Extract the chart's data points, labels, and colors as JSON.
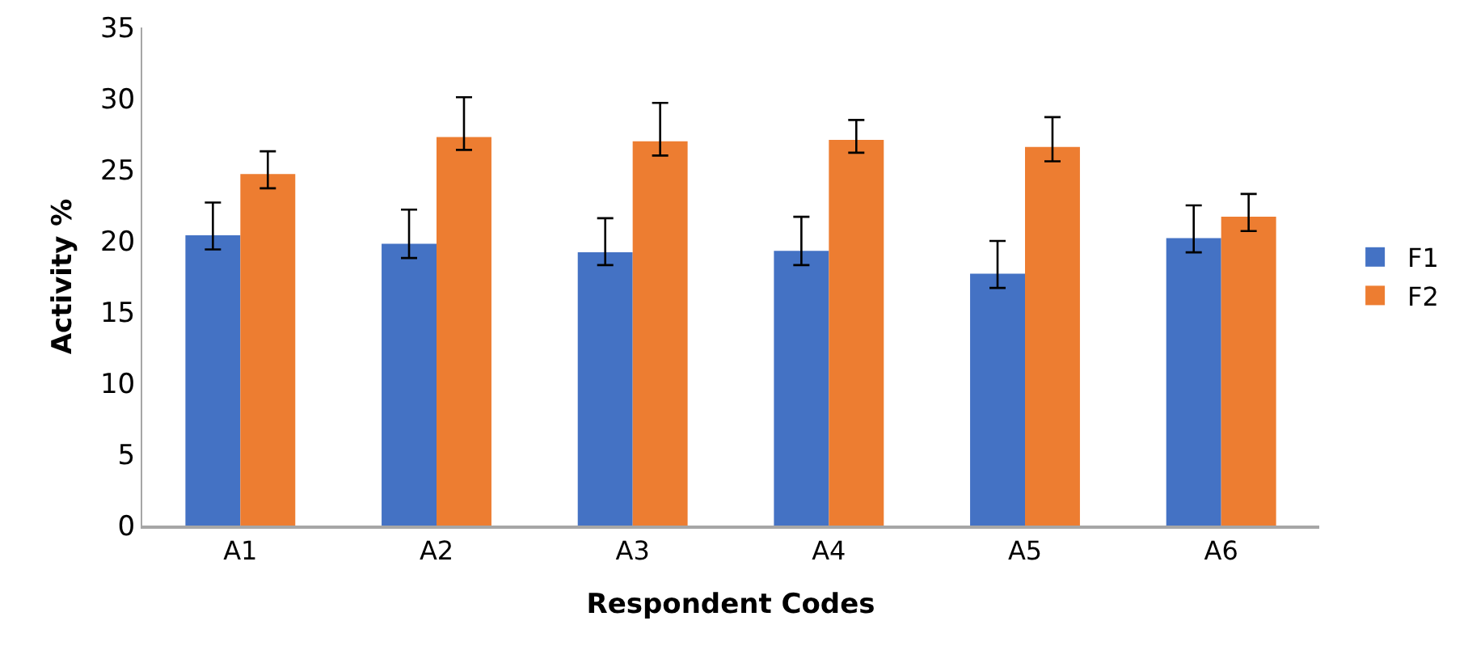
{
  "chart_data": {
    "type": "bar",
    "xlabel": "Respondent Codes",
    "ylabel": "Activity %",
    "categories": [
      "A1",
      "A2",
      "A3",
      "A4",
      "A5",
      "A6"
    ],
    "series": [
      {
        "name": "F1",
        "color": "#4472c4",
        "values": [
          20.4,
          19.8,
          19.2,
          19.3,
          17.7,
          20.2
        ],
        "errors": [
          [
            19.4,
            22.7
          ],
          [
            18.8,
            22.2
          ],
          [
            18.3,
            21.6
          ],
          [
            18.3,
            21.7
          ],
          [
            16.7,
            20.0
          ],
          [
            19.2,
            22.5
          ]
        ]
      },
      {
        "name": "F2",
        "color": "#ed7d31",
        "values": [
          24.7,
          27.3,
          27.0,
          27.1,
          26.6,
          21.7
        ],
        "errors": [
          [
            23.7,
            26.3
          ],
          [
            26.4,
            30.1
          ],
          [
            26.0,
            29.7
          ],
          [
            26.2,
            28.5
          ],
          [
            25.6,
            28.7
          ],
          [
            20.7,
            23.3
          ]
        ]
      }
    ],
    "ylim": [
      0,
      35
    ],
    "yticks": [
      0,
      5,
      10,
      15,
      20,
      25,
      30,
      35
    ],
    "grid": false,
    "legend": "right"
  }
}
